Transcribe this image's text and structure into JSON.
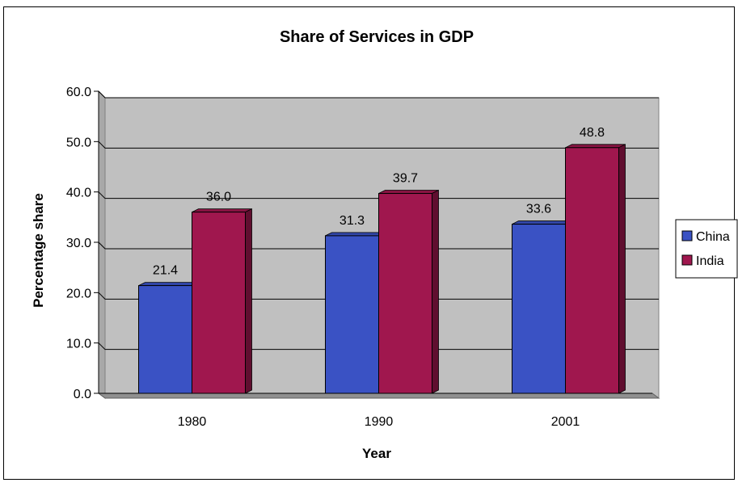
{
  "chart_data": {
    "type": "bar",
    "title": "Share of Services in GDP",
    "xlabel": "Year",
    "ylabel": "Percentage share",
    "categories": [
      "1980",
      "1990",
      "2001"
    ],
    "series": [
      {
        "name": "China",
        "values": [
          21.4,
          31.3,
          33.6
        ],
        "color": "#3a52c4",
        "data_labels": [
          "21.4",
          "31.3",
          "33.6"
        ]
      },
      {
        "name": "India",
        "values": [
          36.0,
          39.7,
          48.8
        ],
        "color": "#a0174e",
        "data_labels": [
          "36.0",
          "39.7",
          "48.8"
        ]
      }
    ],
    "ylim": [
      0,
      60
    ],
    "yticks": [
      "0.0",
      "10.0",
      "20.0",
      "30.0",
      "40.0",
      "50.0",
      "60.0"
    ],
    "grid": true,
    "legend_position": "right",
    "plot_background": "#c0c0c0"
  }
}
